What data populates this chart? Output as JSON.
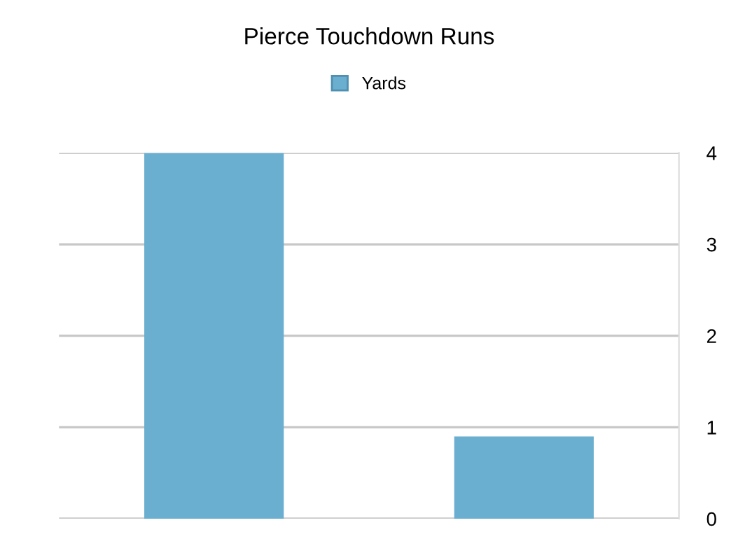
{
  "chart_data": {
    "type": "bar",
    "title": "Pierce Touchdown Runs",
    "categories": [
      null,
      null
    ],
    "series": [
      {
        "name": "Yards",
        "color": "#6aaed0",
        "values": [
          4,
          0.9
        ]
      }
    ],
    "ylim": [
      0,
      4
    ],
    "yticks": [
      0,
      1,
      2,
      3,
      4
    ],
    "grid": "y",
    "legend": "top"
  }
}
